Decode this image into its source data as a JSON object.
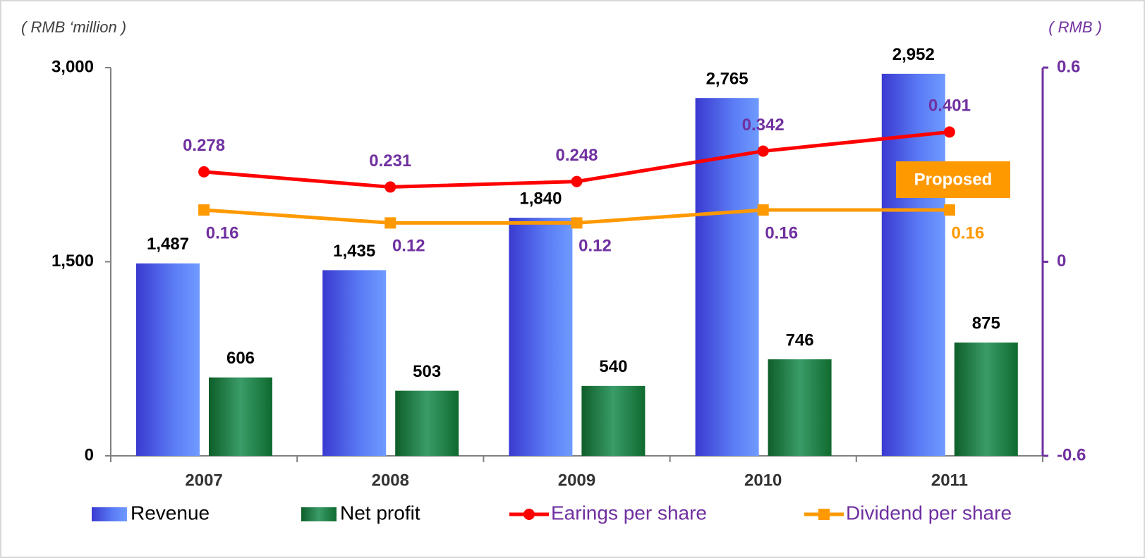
{
  "chart_data": {
    "type": "bar_line",
    "categories": [
      "2007",
      "2008",
      "2009",
      "2010",
      "2011"
    ],
    "y_axis_label": "( RMB ‘million )",
    "y2_axis_label": "( RMB )",
    "ylim": [
      0,
      3000
    ],
    "yticks": [
      0,
      {
        "value": 1500,
        "label": "1,500"
      },
      {
        "value": 3000,
        "label": "3,000"
      }
    ],
    "y2lim": [
      -0.6,
      0.6
    ],
    "y2ticks": [
      -0.6,
      0,
      0.6
    ],
    "y2_color": "#7030a0",
    "series": [
      {
        "name": "Revenue",
        "kind": "bar",
        "color": "#4f6ff0",
        "label_color": "#000000",
        "values": [
          1487,
          1435,
          1840,
          2765,
          2952
        ],
        "value_labels": [
          "1,487",
          "1,435",
          "1,840",
          "2,765",
          "2,952"
        ]
      },
      {
        "name": "Net profit",
        "kind": "bar",
        "color": "#2e8b57",
        "label_color": "#000000",
        "values": [
          606,
          503,
          540,
          746,
          875
        ]
      },
      {
        "name": "Earings per share",
        "kind": "line",
        "axis": "y2",
        "color": "#ff0000",
        "label_color": "#7030a0",
        "values": [
          0.278,
          0.231,
          0.248,
          0.342,
          0.401
        ]
      },
      {
        "name": "Dividend per share",
        "kind": "line",
        "axis": "y2",
        "color": "#ff9900",
        "label_color": "#7030a0",
        "values": [
          0.16,
          0.12,
          0.12,
          0.16,
          0.16
        ],
        "value_label_colors": [
          "#7030a0",
          "#7030a0",
          "#7030a0",
          "#7030a0",
          "#ff9900"
        ]
      }
    ],
    "annotations": [
      {
        "text": "Proposed",
        "color": "#ff9900"
      }
    ]
  }
}
